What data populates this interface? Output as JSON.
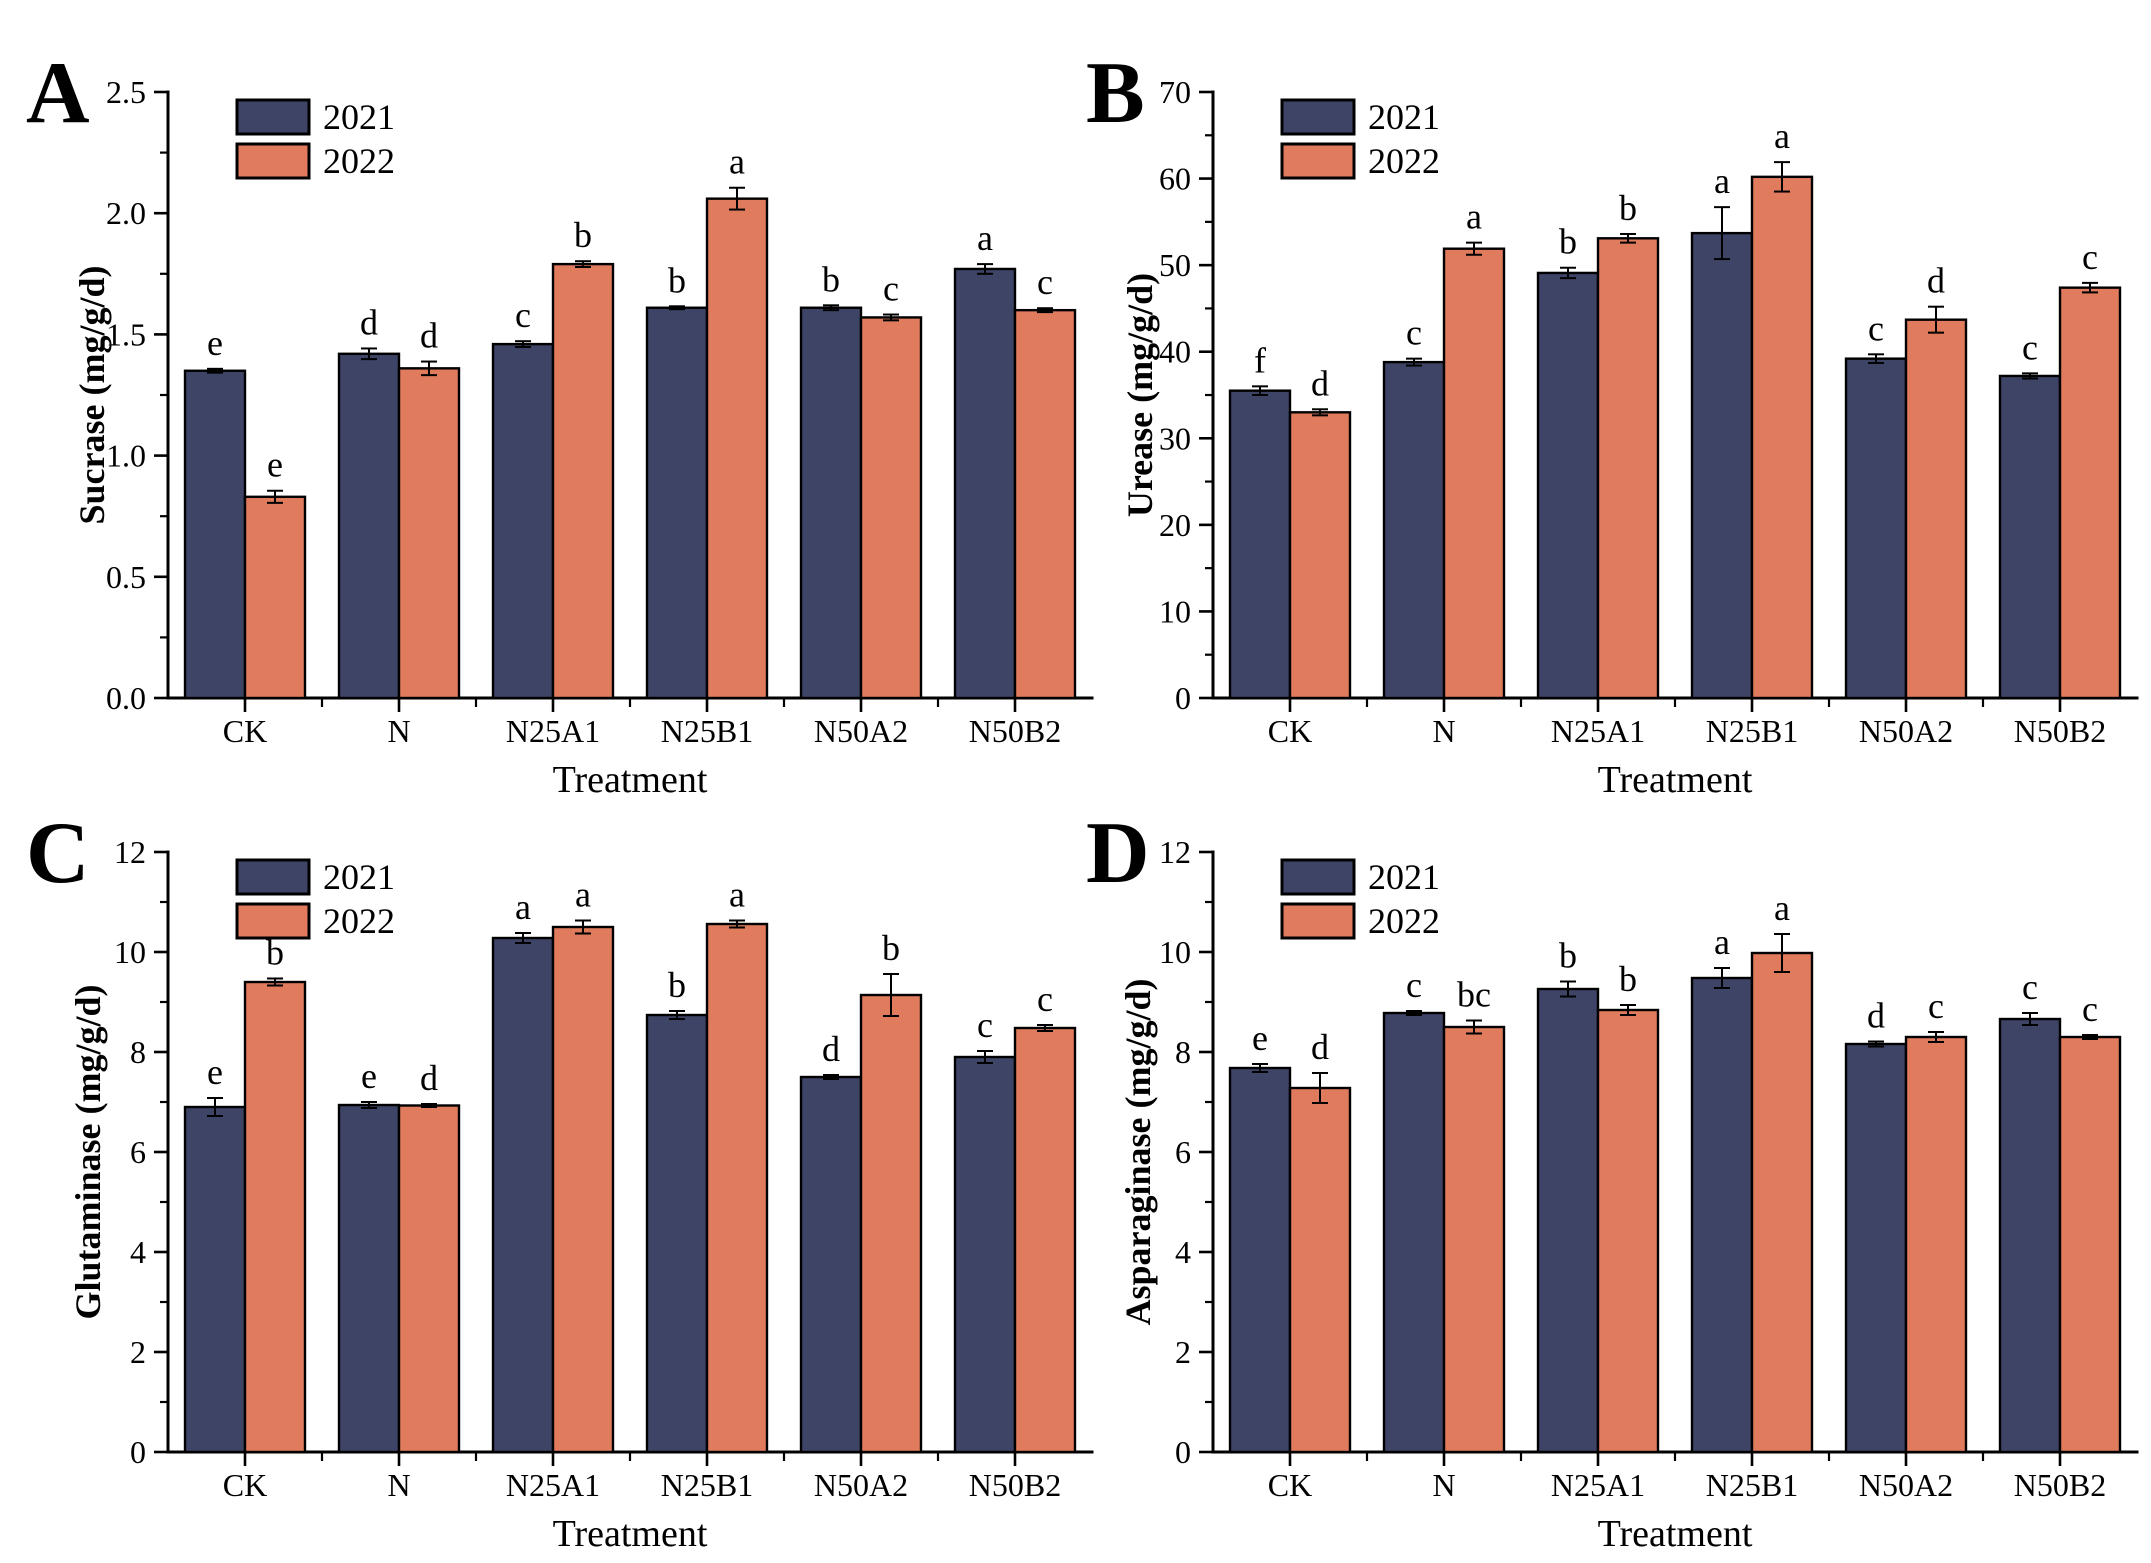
{
  "figure": {
    "background": "#FFFFFF",
    "axis_color": "#000000",
    "legend_labels": [
      "2021",
      "2022"
    ],
    "series_colors": {
      "2021": "#3E4465",
      "2022": "#E07B5D"
    },
    "categories": [
      "CK",
      "N",
      "N25A1",
      "N25B1",
      "N50A2",
      "N50B2"
    ],
    "xlabel": "Treatment"
  },
  "chart_data": [
    {
      "panel": "A",
      "type": "bar",
      "title": "",
      "ylabel": "Sucrase (mg/g/d)",
      "xlabel": "Treatment",
      "categories": [
        "CK",
        "N",
        "N25A1",
        "N25B1",
        "N50A2",
        "N50B2"
      ],
      "ylim": [
        0,
        2.5
      ],
      "ytick_step": 0.5,
      "ytick_decimals": 1,
      "grid": false,
      "legend_position": "top-left",
      "legend": [
        "2021",
        "2022"
      ],
      "series": [
        {
          "name": "2021",
          "color": "#3E4465",
          "values": [
            1.35,
            1.42,
            1.46,
            1.61,
            1.61,
            1.77
          ],
          "errors": [
            0.008,
            0.022,
            0.012,
            0.006,
            0.01,
            0.02
          ],
          "letters": [
            "e",
            "d",
            "c",
            "b",
            "b",
            "a"
          ]
        },
        {
          "name": "2022",
          "color": "#E07B5D",
          "values": [
            0.83,
            1.36,
            1.79,
            2.06,
            1.57,
            1.6
          ],
          "errors": [
            0.025,
            0.028,
            0.012,
            0.045,
            0.012,
            0.008
          ],
          "letters": [
            "e",
            "d",
            "b",
            "a",
            "c",
            "c"
          ]
        }
      ]
    },
    {
      "panel": "B",
      "type": "bar",
      "title": "",
      "ylabel": "Urease (mg/g/d)",
      "xlabel": "Treatment",
      "categories": [
        "CK",
        "N",
        "N25A1",
        "N25B1",
        "N50A2",
        "N50B2"
      ],
      "ylim": [
        0,
        70
      ],
      "ytick_step": 10,
      "ytick_decimals": 0,
      "grid": false,
      "legend_position": "top-left",
      "legend": [
        "2021",
        "2022"
      ],
      "series": [
        {
          "name": "2021",
          "color": "#3E4465",
          "values": [
            35.5,
            38.8,
            49.1,
            53.7,
            39.2,
            37.2
          ],
          "errors": [
            0.5,
            0.4,
            0.6,
            3.0,
            0.5,
            0.3
          ],
          "letters": [
            "f",
            "c",
            "b",
            "a",
            "c",
            "c"
          ]
        },
        {
          "name": "2022",
          "color": "#E07B5D",
          "values": [
            33.0,
            51.9,
            53.1,
            60.2,
            43.7,
            47.4
          ],
          "errors": [
            0.35,
            0.7,
            0.5,
            1.7,
            1.5,
            0.55
          ],
          "letters": [
            "d",
            "a",
            "b",
            "a",
            "d",
            "c"
          ]
        }
      ]
    },
    {
      "panel": "C",
      "type": "bar",
      "title": "",
      "ylabel": "Glutaminase (mg/g/d)",
      "xlabel": "Treatment",
      "categories": [
        "CK",
        "N",
        "N25A1",
        "N25B1",
        "N50A2",
        "N50B2"
      ],
      "ylim": [
        0,
        12
      ],
      "ytick_step": 2,
      "ytick_decimals": 0,
      "grid": false,
      "legend_position": "top-left",
      "legend": [
        "2021",
        "2022"
      ],
      "series": [
        {
          "name": "2021",
          "color": "#3E4465",
          "values": [
            6.9,
            6.94,
            10.28,
            8.74,
            7.5,
            7.9
          ],
          "errors": [
            0.18,
            0.06,
            0.1,
            0.08,
            0.04,
            0.12
          ],
          "letters": [
            "e",
            "e",
            "a",
            "b",
            "d",
            "c"
          ]
        },
        {
          "name": "2022",
          "color": "#E07B5D",
          "values": [
            9.4,
            6.93,
            10.5,
            10.56,
            9.14,
            8.48
          ],
          "errors": [
            0.07,
            0.03,
            0.13,
            0.07,
            0.42,
            0.06
          ],
          "letters": [
            "b",
            "d",
            "a",
            "a",
            "b",
            "c"
          ]
        }
      ]
    },
    {
      "panel": "D",
      "type": "bar",
      "title": "",
      "ylabel": "Asparaginase (mg/g/d)",
      "xlabel": "Treatment",
      "categories": [
        "CK",
        "N",
        "N25A1",
        "N25B1",
        "N50A2",
        "N50B2"
      ],
      "ylim": [
        0,
        12
      ],
      "ytick_step": 2,
      "ytick_decimals": 0,
      "grid": false,
      "legend_position": "top-left",
      "legend": [
        "2021",
        "2022"
      ],
      "series": [
        {
          "name": "2021",
          "color": "#3E4465",
          "values": [
            7.68,
            8.78,
            9.26,
            9.48,
            8.16,
            8.66
          ],
          "errors": [
            0.08,
            0.04,
            0.15,
            0.2,
            0.05,
            0.12
          ],
          "letters": [
            "e",
            "c",
            "b",
            "a",
            "d",
            "c"
          ]
        },
        {
          "name": "2022",
          "color": "#E07B5D",
          "values": [
            7.28,
            8.5,
            8.84,
            9.98,
            8.3,
            8.3
          ],
          "errors": [
            0.3,
            0.13,
            0.1,
            0.38,
            0.1,
            0.04
          ],
          "letters": [
            "d",
            "bc",
            "b",
            "a",
            "c",
            "c"
          ]
        }
      ]
    }
  ]
}
